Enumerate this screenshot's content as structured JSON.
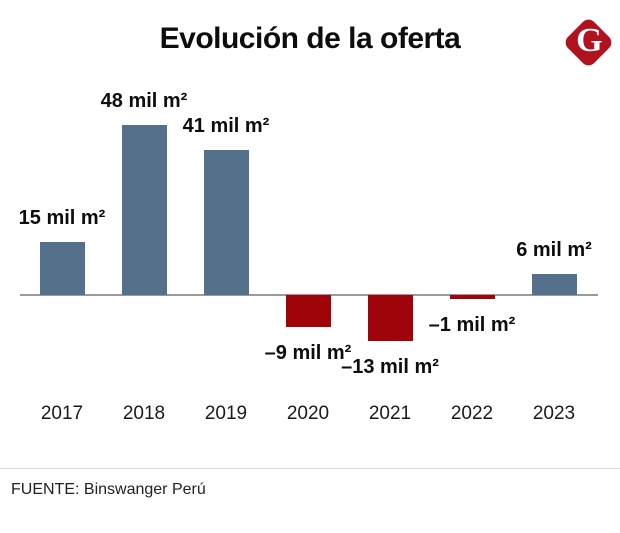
{
  "header": {
    "logo_letter": "G"
  },
  "chart_data": {
    "type": "bar",
    "title": "Evolución de la oferta",
    "categories": [
      "2017",
      "2018",
      "2019",
      "2020",
      "2021",
      "2022",
      "2023"
    ],
    "values": [
      15,
      48,
      41,
      -9,
      -13,
      -1,
      6
    ],
    "bar_labels": [
      "15 mil m²",
      "48 mil m²",
      "41 mil m²",
      "–9 mil m²",
      "–13 mil m²",
      "–1 mil m²",
      "6 mil m²"
    ],
    "unit": "mil m²",
    "xlabel": "",
    "ylabel": "",
    "ylim": [
      -20,
      55
    ],
    "grid": false,
    "legend": false,
    "colors": {
      "positive_bar": "#55708a",
      "negative_bar": "#9e040a",
      "baseline": "#9a9a9a",
      "label_text": "#0d0d0d",
      "logo_red": "#b0121e"
    }
  },
  "footer": {
    "source": "FUENTE: Binswanger Perú"
  }
}
